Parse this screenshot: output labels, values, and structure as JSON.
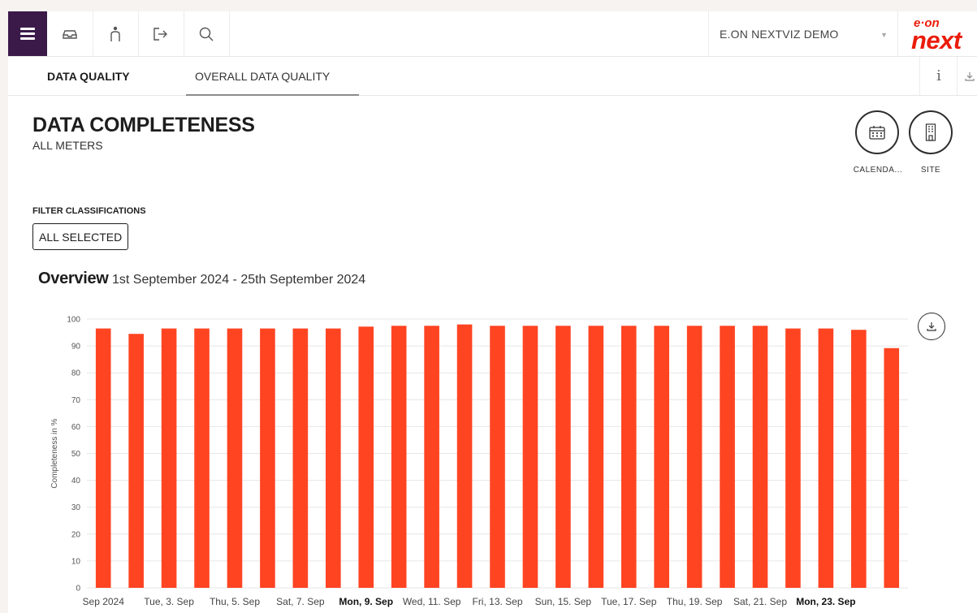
{
  "topbar": {
    "icons": [
      "menu-icon",
      "inbox-icon",
      "person-icon",
      "logout-icon",
      "search-icon"
    ],
    "org_name": "E.ON NEXTVIZ DEMO",
    "logo_small": "e·on",
    "logo_big": "next"
  },
  "tabs": [
    {
      "label": "DATA QUALITY"
    },
    {
      "label": "OVERALL DATA QUALITY"
    }
  ],
  "tab_tools": {
    "info": "i"
  },
  "page": {
    "title": "DATA COMPLETENESS",
    "subtitle": "ALL METERS",
    "calendar_label": "CALENDA...",
    "site_label": "SITE"
  },
  "filter": {
    "label": "FILTER CLASSIFICATIONS",
    "value": "ALL SELECTED"
  },
  "overview": {
    "title": "Overview",
    "range": "1st September 2024 - 25th September 2024"
  },
  "colors": {
    "bar": "#ff4422",
    "menu_bg": "#3b1a4a",
    "brand": "#ea1c0a"
  },
  "chart_data": {
    "type": "bar",
    "ylabel": "Completeness in %",
    "ylim": [
      0,
      100
    ],
    "yticks": [
      0,
      10,
      20,
      30,
      40,
      50,
      60,
      70,
      80,
      90,
      100
    ],
    "grid": true,
    "categories": [
      "1 Sep",
      "2 Sep",
      "3 Sep",
      "4 Sep",
      "5 Sep",
      "6 Sep",
      "7 Sep",
      "8 Sep",
      "9 Sep",
      "10 Sep",
      "11 Sep",
      "12 Sep",
      "13 Sep",
      "14 Sep",
      "15 Sep",
      "16 Sep",
      "17 Sep",
      "18 Sep",
      "19 Sep",
      "20 Sep",
      "21 Sep",
      "22 Sep",
      "23 Sep",
      "24 Sep",
      "25 Sep"
    ],
    "values": [
      96.5,
      94.5,
      96.5,
      96.5,
      96.5,
      96.5,
      96.5,
      96.5,
      97.2,
      97.5,
      97.5,
      98,
      97.5,
      97.5,
      97.5,
      97.5,
      97.5,
      97.5,
      97.5,
      97.5,
      97.5,
      96.5,
      96.5,
      96,
      89.2
    ],
    "xtick_labels": [
      {
        "index": 0,
        "label": "Sep 2024",
        "bold": false
      },
      {
        "index": 2,
        "label": "Tue, 3. Sep",
        "bold": false
      },
      {
        "index": 4,
        "label": "Thu, 5. Sep",
        "bold": false
      },
      {
        "index": 6,
        "label": "Sat, 7. Sep",
        "bold": false
      },
      {
        "index": 8,
        "label": "Mon, 9. Sep",
        "bold": true
      },
      {
        "index": 10,
        "label": "Wed, 11. Sep",
        "bold": false
      },
      {
        "index": 12,
        "label": "Fri, 13. Sep",
        "bold": false
      },
      {
        "index": 14,
        "label": "Sun, 15. Sep",
        "bold": false
      },
      {
        "index": 16,
        "label": "Tue, 17. Sep",
        "bold": false
      },
      {
        "index": 18,
        "label": "Thu, 19. Sep",
        "bold": false
      },
      {
        "index": 20,
        "label": "Sat, 21. Sep",
        "bold": false
      },
      {
        "index": 22,
        "label": "Mon, 23. Sep",
        "bold": true
      }
    ]
  }
}
